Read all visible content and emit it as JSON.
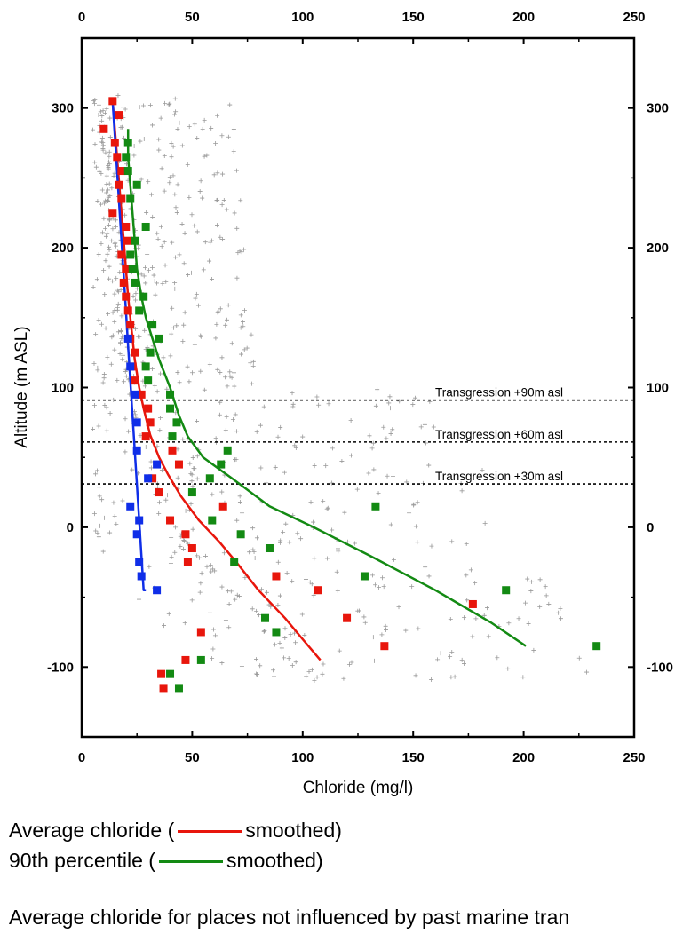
{
  "chart_data": {
    "type": "scatter",
    "xlabel": "Chloride (mg/l)",
    "ylabel": "Altitude (m ASL)",
    "xlim": [
      0,
      250
    ],
    "ylim": [
      -150,
      350
    ],
    "x_ticks": [
      "0",
      "50",
      "100",
      "150",
      "200",
      "250"
    ],
    "y_ticks": [
      "-100",
      "0",
      "100",
      "200",
      "300"
    ],
    "reference_lines": [
      {
        "y": 91,
        "label": "Transgression +90m asl"
      },
      {
        "y": 61,
        "label": "Transgression +60m asl"
      },
      {
        "y": 31,
        "label": "Transgression +30m asl"
      }
    ],
    "series": [
      {
        "name": "Average chloride",
        "marker": "square",
        "color": "#e8160c",
        "points": [
          [
            14,
            305
          ],
          [
            17,
            295
          ],
          [
            10,
            285
          ],
          [
            15,
            275
          ],
          [
            16,
            265
          ],
          [
            18,
            255
          ],
          [
            17,
            245
          ],
          [
            18,
            235
          ],
          [
            14,
            225
          ],
          [
            20,
            215
          ],
          [
            21,
            205
          ],
          [
            18,
            195
          ],
          [
            20,
            185
          ],
          [
            19,
            175
          ],
          [
            20,
            165
          ],
          [
            21,
            155
          ],
          [
            22,
            145
          ],
          [
            22,
            135
          ],
          [
            24,
            125
          ],
          [
            23,
            115
          ],
          [
            24,
            105
          ],
          [
            27,
            95
          ],
          [
            30,
            85
          ],
          [
            31,
            75
          ],
          [
            29,
            65
          ],
          [
            41,
            55
          ],
          [
            44,
            45
          ],
          [
            32,
            35
          ],
          [
            35,
            25
          ],
          [
            64,
            15
          ],
          [
            40,
            5
          ],
          [
            47,
            -5
          ],
          [
            50,
            -15
          ],
          [
            48,
            -25
          ],
          [
            88,
            -35
          ],
          [
            107,
            -45
          ],
          [
            177,
            -55
          ],
          [
            120,
            -65
          ],
          [
            54,
            -75
          ],
          [
            137,
            -85
          ],
          [
            47,
            -95
          ],
          [
            36,
            -105
          ],
          [
            37,
            -115
          ]
        ]
      },
      {
        "name": "90th percentile",
        "marker": "square",
        "color": "#138a13",
        "points": [
          [
            21,
            275
          ],
          [
            20,
            265
          ],
          [
            21,
            255
          ],
          [
            25,
            245
          ],
          [
            22,
            235
          ],
          [
            29,
            215
          ],
          [
            24,
            205
          ],
          [
            22,
            195
          ],
          [
            23,
            185
          ],
          [
            24,
            175
          ],
          [
            28,
            165
          ],
          [
            26,
            155
          ],
          [
            32,
            145
          ],
          [
            35,
            135
          ],
          [
            31,
            125
          ],
          [
            29,
            115
          ],
          [
            30,
            105
          ],
          [
            40,
            95
          ],
          [
            40,
            85
          ],
          [
            43,
            75
          ],
          [
            41,
            65
          ],
          [
            66,
            55
          ],
          [
            63,
            45
          ],
          [
            58,
            35
          ],
          [
            50,
            25
          ],
          [
            133,
            15
          ],
          [
            59,
            5
          ],
          [
            72,
            -5
          ],
          [
            85,
            -15
          ],
          [
            69,
            -25
          ],
          [
            128,
            -35
          ],
          [
            192,
            -45
          ],
          [
            83,
            -65
          ],
          [
            88,
            -75
          ],
          [
            233,
            -85
          ],
          [
            54,
            -95
          ],
          [
            40,
            -105
          ],
          [
            44,
            -115
          ]
        ]
      },
      {
        "name": "",
        "marker": "square",
        "color": "#0f2ee8",
        "points": [
          [
            21,
            135
          ],
          [
            22,
            115
          ],
          [
            24,
            95
          ],
          [
            25,
            75
          ],
          [
            25,
            55
          ],
          [
            34,
            45
          ],
          [
            30,
            35
          ],
          [
            22,
            15
          ],
          [
            26,
            5
          ],
          [
            25,
            -5
          ],
          [
            26,
            -25
          ],
          [
            27,
            -35
          ],
          [
            34,
            -45
          ]
        ]
      }
    ],
    "smoothed": [
      {
        "name": "Average chloride smoothed",
        "color": "#e8160c",
        "x": [
          14,
          15,
          16,
          17,
          18,
          19,
          20,
          21,
          22,
          23,
          24,
          26,
          28,
          31,
          35,
          39,
          45,
          53,
          62,
          70,
          80,
          92,
          101,
          108
        ],
        "y": [
          305,
          285,
          265,
          245,
          225,
          205,
          185,
          165,
          150,
          135,
          120,
          100,
          85,
          66,
          50,
          38,
          22,
          5,
          -10,
          -25,
          -45,
          -65,
          -82,
          -95
        ]
      },
      {
        "name": "90th percentile smoothed",
        "color": "#138a13",
        "x": [
          21,
          21,
          22,
          23,
          24,
          25,
          27,
          29,
          32,
          35,
          40,
          44,
          48,
          55,
          68,
          85,
          105,
          130,
          160,
          185,
          201
        ],
        "y": [
          285,
          265,
          245,
          225,
          205,
          185,
          165,
          150,
          135,
          120,
          100,
          80,
          65,
          50,
          35,
          15,
          0,
          -20,
          -45,
          -68,
          -85
        ]
      },
      {
        "name": "",
        "color": "#0f2ee8",
        "x": [
          14,
          15,
          16,
          17,
          18,
          19,
          20,
          21,
          22,
          23,
          24,
          25,
          26,
          27,
          28,
          29
        ],
        "y": [
          305,
          280,
          255,
          230,
          205,
          180,
          155,
          130,
          105,
          80,
          55,
          30,
          5,
          -20,
          -45,
          -45
        ]
      }
    ],
    "background_scatter": {
      "marker": "+",
      "color": "#9a9a9a",
      "count": 750
    }
  },
  "legend": {
    "avg_prefix": "Average chloride (",
    "avg_suffix": "smoothed)",
    "p90_prefix": "90th percentile  (",
    "p90_suffix": "smoothed)",
    "note": "Average chloride for places not influenced by past marine tran"
  }
}
